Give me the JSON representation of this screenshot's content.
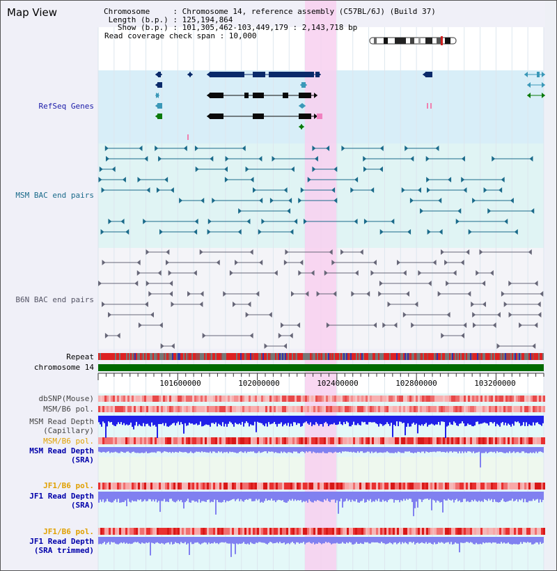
{
  "title": "Map View",
  "info": {
    "chromosome": "Chromosome     : Chromosome 14, reference assembly (C57BL/6J) (Build 37)",
    "length": " Length (b.p.) : 125,194,864",
    "show": "   Show (b.p.) : 101,305,462-103,449,179 : 2,143,718 bp",
    "coverage": "Read coverage check span : 10,000"
  },
  "tracks": [
    {
      "id": "refseq",
      "label": "RefSeq Genes",
      "color": "#1a1aa8"
    },
    {
      "id": "msm_bac",
      "label": "MSM BAC end pairs",
      "color": "#1a6a8a"
    },
    {
      "id": "b6n_bac",
      "label": "B6N BAC end pairs",
      "color": "#555566"
    },
    {
      "id": "repeat",
      "label": "Repeat",
      "color": "#000000"
    },
    {
      "id": "chr",
      "label": "chromosome 14",
      "color": "#000000"
    },
    {
      "id": "dbsnp",
      "label": "dbSNP(Mouse)",
      "color": "#444444"
    },
    {
      "id": "msm_pol1",
      "label": "MSM/B6 pol.",
      "color": "#444444"
    },
    {
      "id": "msm_depth_cap",
      "label": "MSM Read Depth\n(Capillary)",
      "color": "#444444"
    },
    {
      "id": "msm_pol2",
      "label": "MSM/B6 pol.",
      "color": "#e0a000"
    },
    {
      "id": "msm_depth_sra",
      "label": "MSM Read Depth\n(SRA)",
      "color": "#0000aa"
    },
    {
      "id": "jf1_pol1",
      "label": "JF1/B6 pol.",
      "color": "#e0a000"
    },
    {
      "id": "jf1_depth_sra",
      "label": "JF1 Read Depth\n(SRA)",
      "color": "#0000aa"
    },
    {
      "id": "jf1_pol2",
      "label": "JF1/B6 pol.",
      "color": "#e0a000"
    },
    {
      "id": "jf1_depth_trim",
      "label": "JF1 Read Depth\n(SRA trimmed)",
      "color": "#0000aa"
    }
  ],
  "axis": {
    "ticks": [
      "101600000",
      "102000000",
      "102400000",
      "102800000",
      "103200000"
    ]
  },
  "colors": {
    "highlight": "#f8d0f0",
    "refseq_bg": "#d8eef8",
    "bac_bg": "#e0f4f4",
    "chromosome": "#006a00",
    "gene_dark": "#0a2a6a",
    "gene_teal": "#3a98b8",
    "gene_green": "#0a7a0a",
    "msm_bac": "#1a6a8a",
    "b6n_bac": "#666677",
    "snp_red": "#e84040",
    "depth_blue": "#2020e8",
    "depth_light": "#8080f0"
  }
}
